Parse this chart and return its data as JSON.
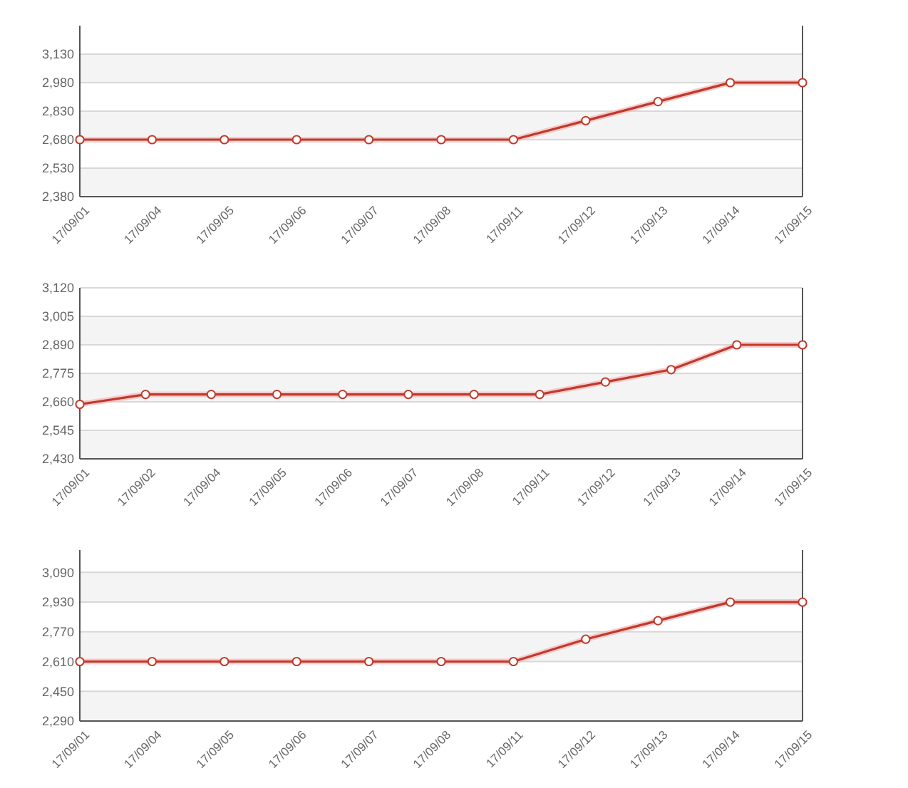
{
  "chart_data": [
    {
      "type": "line",
      "categories": [
        "17/09/01",
        "17/09/04",
        "17/09/05",
        "17/09/06",
        "17/09/07",
        "17/09/08",
        "17/09/11",
        "17/09/12",
        "17/09/13",
        "17/09/14",
        "17/09/15"
      ],
      "series": [
        {
          "color": "#c0392b",
          "values": [
            2680,
            2680,
            2680,
            2680,
            2680,
            2680,
            2680,
            2780,
            2880,
            2980,
            2980
          ]
        }
      ],
      "ylim": [
        2380,
        3280
      ],
      "yticks": [
        {
          "value": 2380,
          "label": "2,380"
        },
        {
          "value": 2530,
          "label": "2,530"
        },
        {
          "value": 2680,
          "label": "2,680"
        },
        {
          "value": 2830,
          "label": "2,830"
        },
        {
          "value": 2980,
          "label": "2,980"
        },
        {
          "value": 3130,
          "label": "3,130"
        }
      ],
      "grid": "y",
      "marker": "circle",
      "line_style": "solid"
    },
    {
      "type": "line",
      "categories": [
        "17/09/01",
        "17/09/02",
        "17/09/04",
        "17/09/05",
        "17/09/06",
        "17/09/07",
        "17/09/08",
        "17/09/11",
        "17/09/12",
        "17/09/13",
        "17/09/14",
        "17/09/15"
      ],
      "series": [
        {
          "color": "#c0392b",
          "values": [
            2650,
            2690,
            2690,
            2690,
            2690,
            2690,
            2690,
            2690,
            2740,
            2790,
            2890,
            2890
          ]
        }
      ],
      "ylim": [
        2430,
        3120
      ],
      "yticks": [
        {
          "value": 2430,
          "label": "2,430"
        },
        {
          "value": 2545,
          "label": "2,545"
        },
        {
          "value": 2660,
          "label": "2,660"
        },
        {
          "value": 2775,
          "label": "2,775"
        },
        {
          "value": 2890,
          "label": "2,890"
        },
        {
          "value": 3005,
          "label": "3,005"
        },
        {
          "value": 3120,
          "label": "3,120"
        }
      ],
      "grid": "y",
      "marker": "circle",
      "line_style": "solid"
    },
    {
      "type": "line",
      "categories": [
        "17/09/01",
        "17/09/04",
        "17/09/05",
        "17/09/06",
        "17/09/07",
        "17/09/08",
        "17/09/11",
        "17/09/12",
        "17/09/13",
        "17/09/14",
        "17/09/15"
      ],
      "series": [
        {
          "color": "#c0392b",
          "values": [
            2610,
            2610,
            2610,
            2610,
            2610,
            2610,
            2610,
            2730,
            2830,
            2930,
            2930
          ]
        }
      ],
      "ylim": [
        2290,
        3210
      ],
      "yticks": [
        {
          "value": 2290,
          "label": "2,290"
        },
        {
          "value": 2450,
          "label": "2,450"
        },
        {
          "value": 2610,
          "label": "2,610"
        },
        {
          "value": 2770,
          "label": "2,770"
        },
        {
          "value": 2930,
          "label": "2,930"
        },
        {
          "value": 3090,
          "label": "3,090"
        }
      ],
      "grid": "y",
      "marker": "circle",
      "line_style": "solid"
    }
  ]
}
